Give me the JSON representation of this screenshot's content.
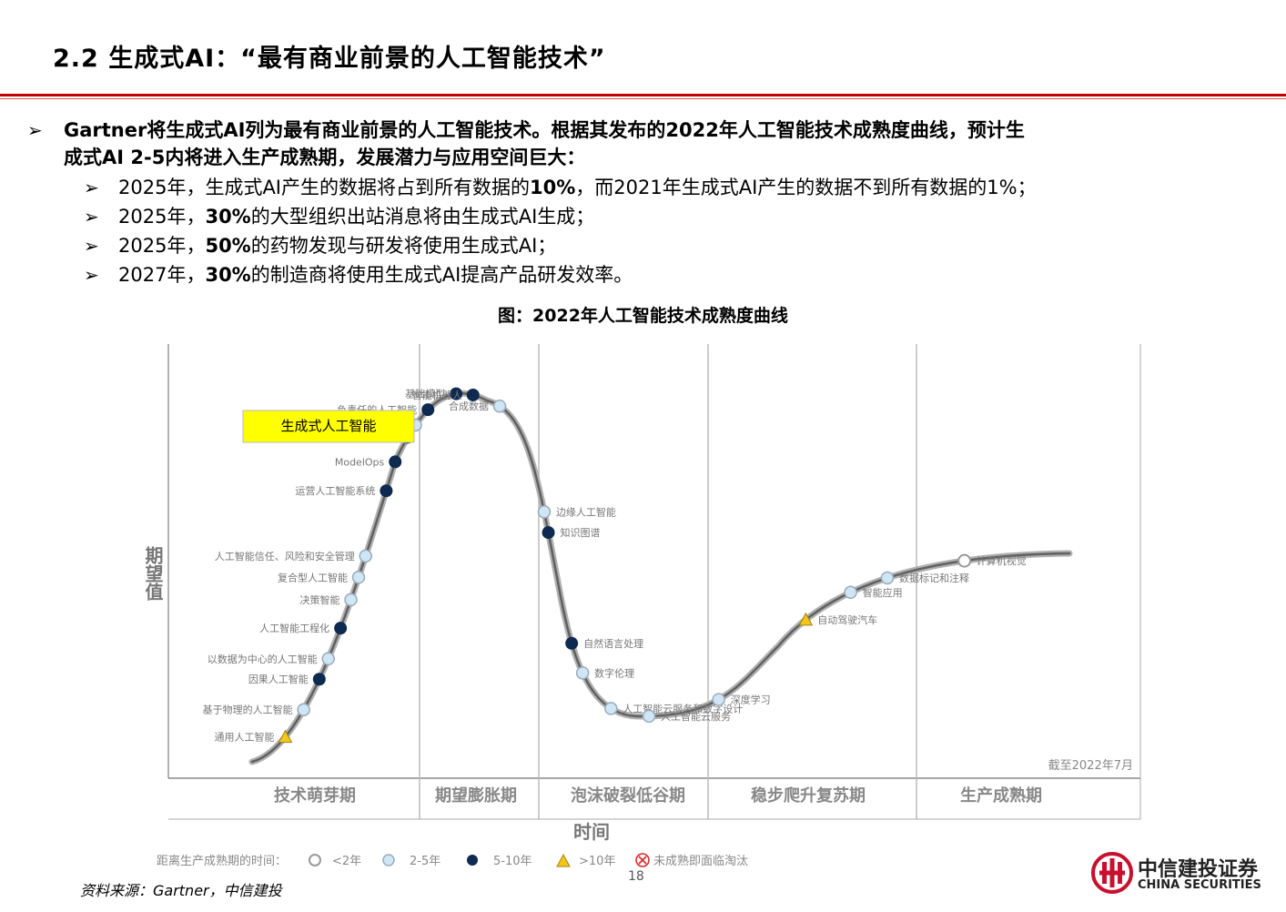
{
  "title": "2.2 生成式AI：“最有商业前景的人工智能技术”",
  "main_bullet": {
    "line1": "Gartner将生成式AI列为最有商业前景的人工智能技术。根据其发布的2022年人工智能技术成熟度曲线，预计生",
    "line2": "成式AI 2-5内将进入生产成熟期，发展潜力与应用空间巨大："
  },
  "sub_bullets": [
    {
      "pre": "2025年，生成式AI产生的数据将占到所有数据的",
      "bold": "10%",
      "post": "，而2021年生成式AI产生的数据不到所有数据的1%；"
    },
    {
      "pre": "2025年，",
      "bold": "30%",
      "post": "的大型组织出站消息将由生成式AI生成；"
    },
    {
      "pre": "2025年，",
      "bold": "50%",
      "post": "的药物发现与研发将使用生成式AI；"
    },
    {
      "pre": "2027年，",
      "bold": "30%",
      "post": "的制造商将使用生成式AI提高产品研发效率。"
    }
  ],
  "figure_title": "图：2022年人工智能技术成熟度曲线",
  "chart_data": {
    "type": "hype-cycle",
    "ylabel": "期望值",
    "xlabel": "时间",
    "note": "截至2022年7月",
    "callout": "生成式人工智能",
    "phases": [
      "技术萌芽期",
      "期望膨胀期",
      "泡沫破裂低谷期",
      "稳步爬升复苏期",
      "生产成熟期"
    ],
    "legend_title": "距离生产成熟期的时间：",
    "legend": [
      {
        "key": "lt2",
        "label": "<2年"
      },
      {
        "key": "2-5",
        "label": "2-5年"
      },
      {
        "key": "5-10",
        "label": "5-10年"
      },
      {
        "key": "gt10",
        "label": ">10年"
      },
      {
        "key": "obs",
        "label": "未成熟即面临淘汰"
      }
    ],
    "points": [
      {
        "label": "通用人工智能",
        "t": 0.032,
        "cat": "gt10"
      },
      {
        "label": "基于物理的人工智能",
        "t": 0.057,
        "cat": "2-5"
      },
      {
        "label": "因果人工智能",
        "t": 0.083,
        "cat": "5-10"
      },
      {
        "label": "以数据为中心的人工智能",
        "t": 0.1,
        "cat": "2-5"
      },
      {
        "label": "人工智能工程化",
        "t": 0.125,
        "cat": "5-10"
      },
      {
        "label": "决策智能",
        "t": 0.148,
        "cat": "2-5"
      },
      {
        "label": "复合型人工智能",
        "t": 0.166,
        "cat": "2-5"
      },
      {
        "label": "人工智能信任、风险和安全管理",
        "t": 0.183,
        "cat": "2-5"
      },
      {
        "label": "运营人工智能系统",
        "t": 0.235,
        "cat": "5-10"
      },
      {
        "label": "ModelOps",
        "t": 0.258,
        "cat": "5-10"
      },
      {
        "label": "神经形态计算",
        "t": 0.279,
        "cat": "5-10"
      },
      {
        "label": "生成式人工智能",
        "t": 0.29,
        "cat": "2-5"
      },
      {
        "label": "负责任的人工智能",
        "t": 0.305,
        "cat": "5-10"
      },
      {
        "label": "基础模型",
        "t": 0.33,
        "cat": "5-10"
      },
      {
        "label": "智能机器人",
        "t": 0.343,
        "cat": "5-10"
      },
      {
        "label": "合成数据",
        "t": 0.365,
        "cat": "2-5"
      },
      {
        "label": "边缘人工智能",
        "t": 0.454,
        "cat": "2-5"
      },
      {
        "label": "知识图谱",
        "t": 0.47,
        "cat": "5-10"
      },
      {
        "label": "自然语言处理",
        "t": 0.556,
        "cat": "5-10"
      },
      {
        "label": "数字伦理",
        "t": 0.58,
        "cat": "2-5"
      },
      {
        "label": "人工智能云服务和数字设计",
        "t": 0.615,
        "cat": "2-5"
      },
      {
        "label": "人工智能云服务",
        "t": 0.645,
        "cat": "2-5"
      },
      {
        "label": "深度学习",
        "t": 0.7,
        "cat": "2-5"
      },
      {
        "label": "自动驾驶汽车",
        "t": 0.79,
        "cat": "gt10"
      },
      {
        "label": "智能应用",
        "t": 0.83,
        "cat": "2-5"
      },
      {
        "label": "数据标记和注释",
        "t": 0.86,
        "cat": "2-5"
      },
      {
        "label": "计算机视觉",
        "t": 0.92,
        "cat": "lt2"
      }
    ]
  },
  "footer": {
    "source": "资料来源：Gartner，中信建投",
    "page": "18",
    "logo_cn": "中信建投证券",
    "logo_en": "CHINA SECURITIES"
  }
}
